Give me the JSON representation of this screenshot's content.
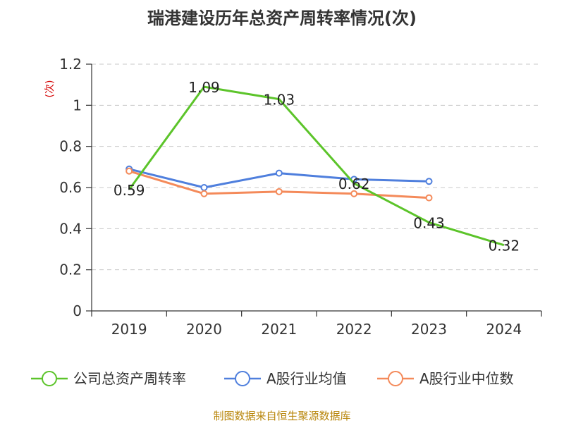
{
  "chart_data": {
    "type": "line",
    "title": "瑞港建设历年总资产周转率情况(次)",
    "ylabel": "(次)",
    "xlabel": "",
    "categories": [
      "2019",
      "2020",
      "2021",
      "2022",
      "2023",
      "2024"
    ],
    "ylim": [
      0,
      1.2
    ],
    "yticks": [
      "0",
      "0.2",
      "0.4",
      "0.6",
      "0.8",
      "1",
      "1.2"
    ],
    "grid": true,
    "legend_position": "bottom",
    "series": [
      {
        "name": "公司总资产周转率",
        "color": "#5cc42a",
        "values": [
          0.59,
          1.09,
          1.03,
          0.62,
          0.43,
          0.32
        ],
        "labels": [
          "0.59",
          "1.09",
          "1.03",
          "0.62",
          "0.43",
          "0.32"
        ]
      },
      {
        "name": "A股行业均值",
        "color": "#4f7fdd",
        "values": [
          0.69,
          0.6,
          0.67,
          0.64,
          0.63,
          null
        ]
      },
      {
        "name": "A股行业中位数",
        "color": "#f48a5a",
        "values": [
          0.68,
          0.57,
          0.58,
          0.57,
          0.55,
          null
        ]
      }
    ]
  },
  "source": "制图数据来自恒生聚源数据库"
}
